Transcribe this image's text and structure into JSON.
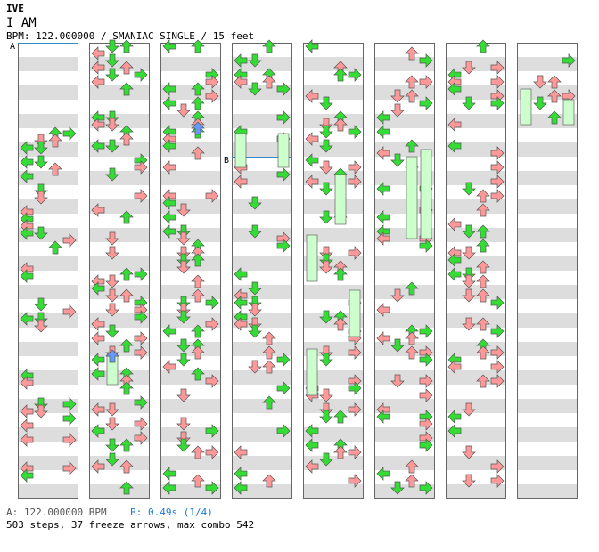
{
  "song": {
    "artist": "IVE",
    "title": "I AM",
    "info": "BPM: 122.000000 / SMANIAC SINGLE / 15 feet"
  },
  "markers": {
    "a": "A",
    "b": "B"
  },
  "footer": {
    "bpm_a": "A: 122.000000 BPM",
    "bpm_b": "B: 0.49s (1/4)",
    "stats": "503 steps, 37 freeze arrows, max combo 542"
  },
  "colors": {
    "quarter_note": "#33dd33",
    "eighth_note": "#ff9999",
    "sixteenth_note": "#6699ff",
    "freeze": "#ccffcc",
    "stripe": "#dddddd",
    "lane_border": "#666666",
    "marker_line": "#3388cc"
  }
}
